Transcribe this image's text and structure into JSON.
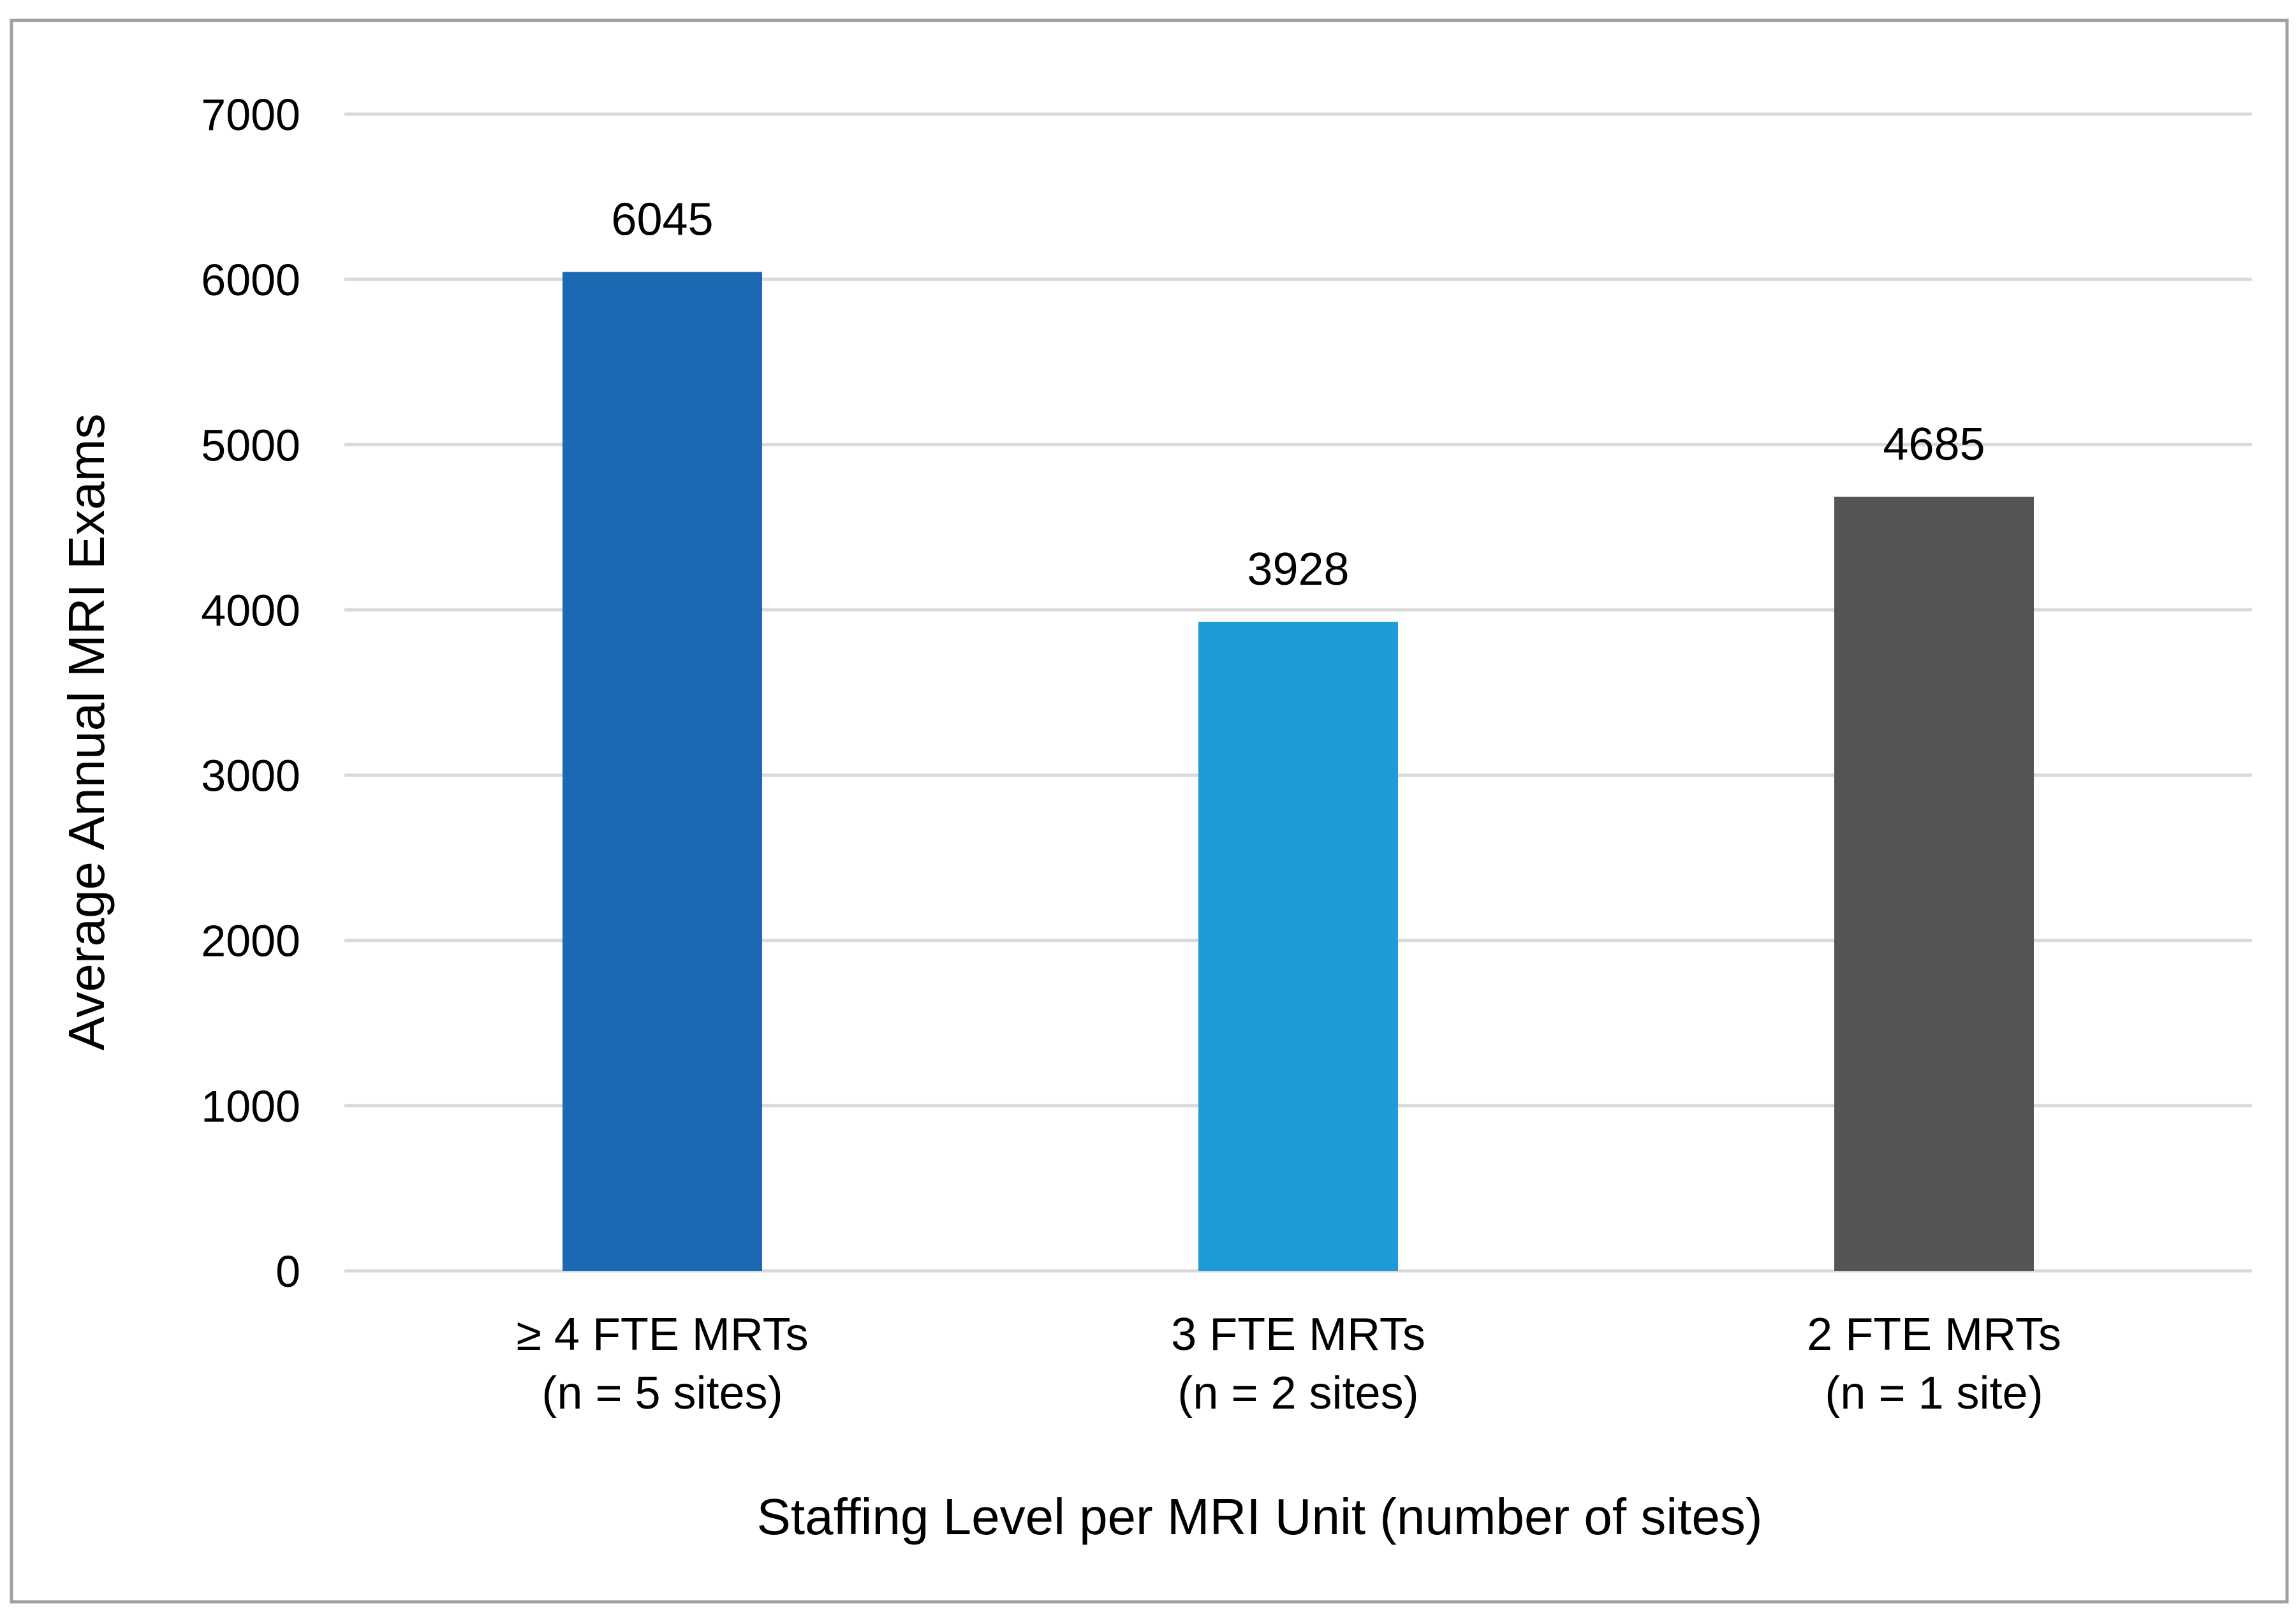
{
  "chart_data": {
    "type": "bar",
    "title": "",
    "xlabel": "Staffing Level per MRI Unit (number of sites)",
    "ylabel": "Average Annual MRI Exams",
    "ylim": [
      0,
      7000
    ],
    "yticks": [
      0,
      1000,
      2000,
      3000,
      4000,
      5000,
      6000,
      7000
    ],
    "grid": true,
    "categories": [
      {
        "line1": "≥ 4 FTE MRTs",
        "line2": "(n = 5 sites)"
      },
      {
        "line1": "3 FTE MRTs",
        "line2": "(n = 2 sites)"
      },
      {
        "line1": "2 FTE MRTs",
        "line2": "(n = 1 site)"
      }
    ],
    "values": [
      6045,
      3928,
      4685
    ],
    "data_labels": [
      "6045",
      "3928",
      "4685"
    ],
    "colors": [
      "#1B69B3",
      "#1F9BD7",
      "#545655"
    ],
    "gridline_color": "#D9D9D9",
    "border_color": "#A0A0A0"
  }
}
